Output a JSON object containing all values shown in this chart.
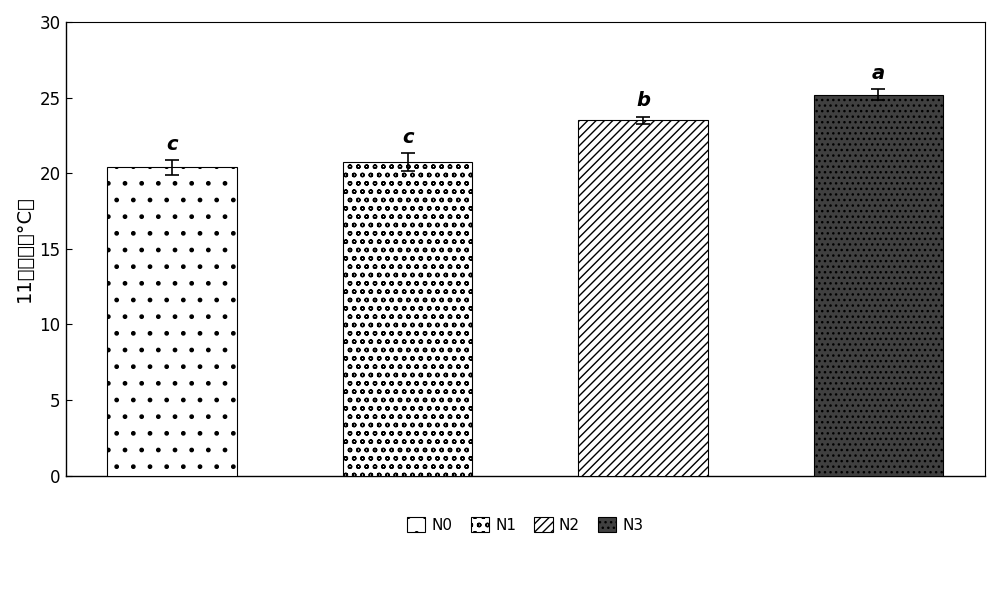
{
  "categories": [
    "N0",
    "N1",
    "N2",
    "N3"
  ],
  "values": [
    20.4,
    20.75,
    23.5,
    25.2
  ],
  "errors": [
    0.5,
    0.6,
    0.25,
    0.35
  ],
  "significance": [
    "c",
    "c",
    "b",
    "a"
  ],
  "ylabel": "11时叶温（°C）",
  "ylim": [
    0,
    30
  ],
  "yticks": [
    0,
    5,
    10,
    15,
    20,
    25,
    30
  ],
  "bar_width": 0.55,
  "background_color": "#ffffff",
  "sig_fontsize": 14,
  "ylabel_fontsize": 14,
  "tick_fontsize": 12,
  "legend_fontsize": 11,
  "figure_width": 10.0,
  "figure_height": 5.89
}
